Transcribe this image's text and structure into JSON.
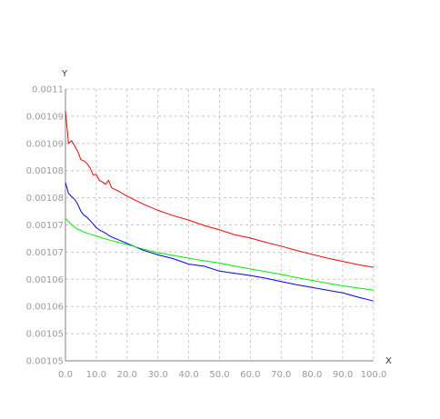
{
  "chart_data": {
    "type": "line",
    "xlabel": "X",
    "ylabel": "Y",
    "xlim": [
      0,
      100
    ],
    "ylim": [
      0.00105,
      0.0011
    ],
    "grid": true,
    "x_ticks": [
      "0.0",
      "10.0",
      "20.0",
      "30.0",
      "40.0",
      "50.0",
      "60.0",
      "70.0",
      "80.0",
      "90.0",
      "100.0"
    ],
    "y_ticks": [
      "0.00105",
      "0.001055",
      "0.00106",
      "0.001065",
      "0.00107",
      "0.001075",
      "0.00108",
      "0.001085",
      "0.00109",
      "0.001095",
      "0.0011"
    ],
    "y_ticks_shown": [
      "0.00105",
      "0.00105",
      "0.00106",
      "0.00106",
      "0.00107",
      "0.00107",
      "0.00108",
      "0.00108",
      "0.00109",
      "0.00109",
      "0.0011"
    ],
    "series": [
      {
        "color": "#ff0000",
        "x": [
          0,
          1,
          2,
          3,
          4,
          5,
          6,
          7,
          8,
          9,
          10,
          11,
          12,
          13,
          14,
          15,
          17,
          20,
          25,
          30,
          35,
          40,
          45,
          50,
          55,
          60,
          65,
          70,
          75,
          80,
          85,
          90,
          95,
          100
        ],
        "y": [
          0.001096,
          0.00109,
          0.0010905,
          0.0010895,
          0.0010885,
          0.001087,
          0.0010868,
          0.0010863,
          0.0010855,
          0.0010842,
          0.0010843,
          0.0010832,
          0.0010829,
          0.0010825,
          0.0010832,
          0.0010818,
          0.0010813,
          0.0010803,
          0.0010789,
          0.0010777,
          0.0010767,
          0.0010759,
          0.0010749,
          0.0010741,
          0.0010732,
          0.0010726,
          0.0010718,
          0.0010711,
          0.0010703,
          0.0010696,
          0.0010689,
          0.0010683,
          0.0010677,
          0.0010672
        ]
      },
      {
        "color": "#0000ff",
        "x": [
          0,
          1,
          2,
          3,
          4,
          5,
          6,
          7,
          8,
          9,
          10,
          11,
          12,
          13,
          14,
          15,
          17,
          20,
          25,
          30,
          35,
          40,
          45,
          50,
          55,
          60,
          65,
          70,
          75,
          80,
          85,
          90,
          95,
          100
        ],
        "y": [
          0.0010828,
          0.0010808,
          0.0010802,
          0.0010797,
          0.0010788,
          0.0010775,
          0.0010768,
          0.0010764,
          0.0010758,
          0.0010752,
          0.0010745,
          0.0010741,
          0.0010738,
          0.0010735,
          0.0010731,
          0.0010728,
          0.0010723,
          0.0010716,
          0.0010704,
          0.0010695,
          0.0010688,
          0.0010678,
          0.0010674,
          0.0010665,
          0.0010661,
          0.0010657,
          0.0010652,
          0.0010646,
          0.001064,
          0.0010635,
          0.001063,
          0.0010625,
          0.0010617,
          0.001061
        ]
      },
      {
        "color": "#00ee00",
        "x": [
          0,
          1,
          2,
          3,
          4,
          5,
          6,
          8,
          10,
          12,
          15,
          20,
          25,
          30,
          35,
          40,
          45,
          50,
          55,
          60,
          65,
          70,
          75,
          80,
          85,
          90,
          95,
          100
        ],
        "y": [
          0.0010762,
          0.0010756,
          0.001075,
          0.0010746,
          0.0010742,
          0.001074,
          0.0010737,
          0.0010733,
          0.001073,
          0.0010726,
          0.0010721,
          0.0010714,
          0.0010706,
          0.0010699,
          0.0010694,
          0.0010689,
          0.0010684,
          0.001068,
          0.0010674,
          0.0010669,
          0.0010664,
          0.0010659,
          0.0010653,
          0.0010648,
          0.0010643,
          0.0010638,
          0.0010634,
          0.001063
        ]
      }
    ]
  }
}
